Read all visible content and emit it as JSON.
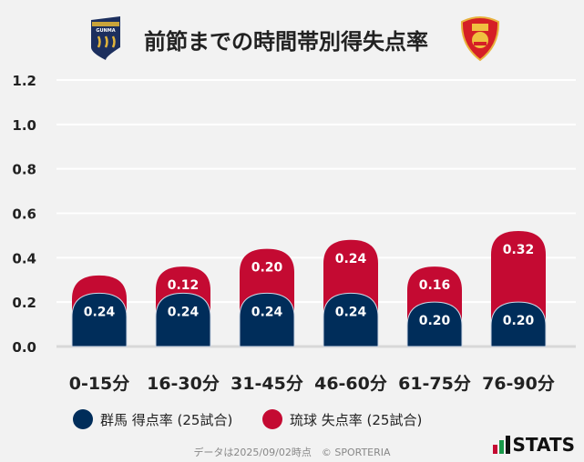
{
  "chart_data": {
    "type": "bar",
    "stacked": true,
    "title": "前節までの時間帯別得失点率",
    "categories": [
      "0-15分",
      "16-30分",
      "31-45分",
      "46-60分",
      "61-75分",
      "76-90分"
    ],
    "series": [
      {
        "name": "群馬 得点率 (25試合)",
        "color": "#002d5a",
        "values": [
          0.24,
          0.24,
          0.24,
          0.24,
          0.2,
          0.2
        ],
        "labels": [
          "0.24",
          "0.24",
          "0.24",
          "0.24",
          "0.20",
          "0.20"
        ]
      },
      {
        "name": "琉球 失点率 (25試合)",
        "color": "#c40a32",
        "values": [
          0.08,
          0.12,
          0.2,
          0.24,
          0.16,
          0.32
        ],
        "labels": [
          "",
          "0.12",
          "0.20",
          "0.24",
          "0.16",
          "0.32"
        ]
      }
    ],
    "ylim": [
      0,
      1.2
    ],
    "yticks": [
      "0.0",
      "0.2",
      "0.4",
      "0.6",
      "0.8",
      "1.0",
      "1.2"
    ],
    "grid": true,
    "legend": "bottom"
  },
  "footer": {
    "note": "データは2025/09/02時点　© SPORTERIA",
    "brand": "STATS"
  },
  "logos": {
    "left": "GUNMA",
    "right": "Ryukyu"
  }
}
